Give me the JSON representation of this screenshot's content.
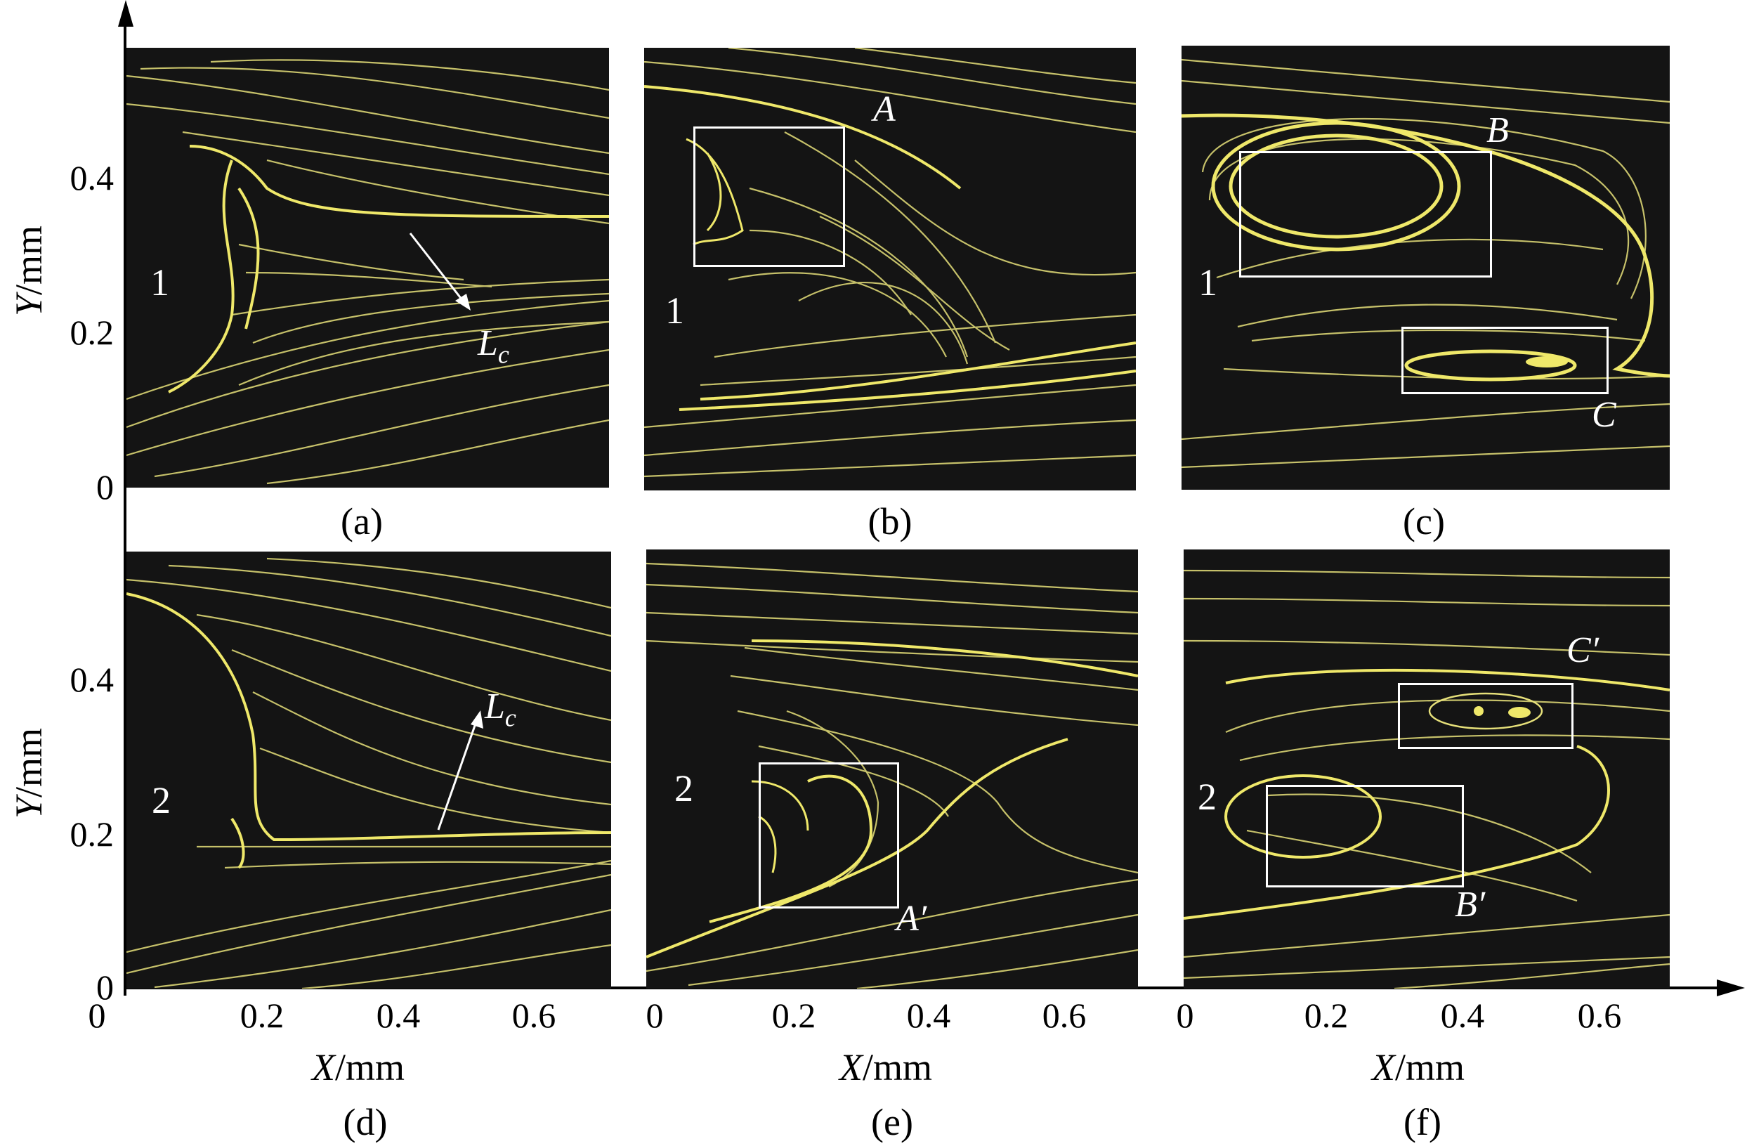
{
  "figure": {
    "y_axis_title": "Y/mm",
    "y_axis_title_italic": "Y",
    "y_axis_unit": "/mm",
    "x_axis_title_italic": "X",
    "x_axis_unit": "/mm",
    "y_ticks": [
      "0.4",
      "0.2",
      "0"
    ],
    "x_ticks_first": [
      "0.2",
      "0.4",
      "0.6"
    ],
    "x_ticks": [
      "0",
      "0.2",
      "0.4",
      "0.6"
    ],
    "streamline_color": "#e6e07a",
    "background_color": "#141414"
  },
  "panels": [
    {
      "caption": "(a)",
      "zone": "1",
      "annotations": [
        {
          "text": "L",
          "sub": "c"
        }
      ]
    },
    {
      "caption": "(b)",
      "zone": "1",
      "annotations": [
        {
          "text": "A"
        }
      ]
    },
    {
      "caption": "(c)",
      "zone": "1",
      "annotations": [
        {
          "text": "B"
        },
        {
          "text": "C"
        }
      ]
    },
    {
      "caption": "(d)",
      "zone": "2",
      "annotations": [
        {
          "text": "L",
          "sub": "c"
        }
      ]
    },
    {
      "caption": "(e)",
      "zone": "2",
      "annotations": [
        {
          "text": "A′"
        }
      ]
    },
    {
      "caption": "(f)",
      "zone": "2",
      "annotations": [
        {
          "text": "C′"
        },
        {
          "text": "B′"
        }
      ]
    }
  ]
}
